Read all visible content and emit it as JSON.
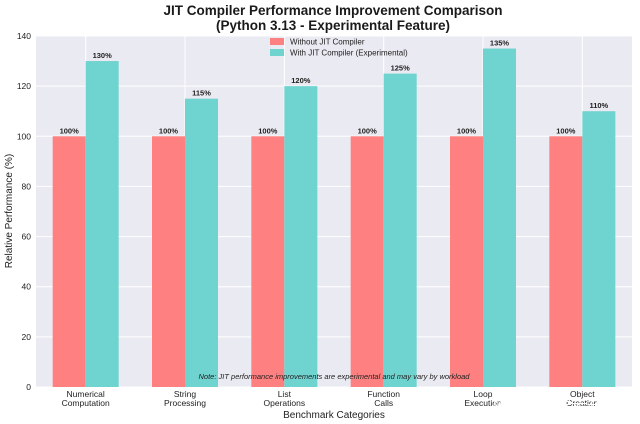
{
  "chart_data": {
    "type": "bar",
    "title": "JIT Compiler Performance Improvement Comparison",
    "subtitle": "(Python 3.13 - Experimental Feature)",
    "xlabel": "Benchmark Categories",
    "ylabel": "Relative Performance (%)",
    "ylim": [
      0,
      140
    ],
    "yticks": [
      0,
      20,
      40,
      60,
      80,
      100,
      120,
      140
    ],
    "grid": true,
    "legend_position": "top-center",
    "categories": [
      [
        "Numerical",
        "Computation"
      ],
      [
        "String",
        "Processing"
      ],
      [
        "List",
        "Operations"
      ],
      [
        "Function",
        "Calls"
      ],
      [
        "Loop",
        "Execution"
      ],
      [
        "Object",
        "Creation"
      ]
    ],
    "series": [
      {
        "name": "Without JIT Compiler",
        "color": "#ff8080",
        "values": [
          100,
          100,
          100,
          100,
          100,
          100
        ],
        "labels": [
          "100%",
          "100%",
          "100%",
          "100%",
          "100%",
          "100%"
        ]
      },
      {
        "name": "With JIT Compiler (Experimental)",
        "color": "#6fd3cf",
        "values": [
          130,
          115,
          120,
          125,
          135,
          110
        ],
        "labels": [
          "130%",
          "115%",
          "120%",
          "125%",
          "135%",
          "110%"
        ]
      }
    ],
    "annotation": "Note: JIT performance improvements are experimental and may vary by workload"
  },
  "watermark": "头条 @阿里云开发者"
}
